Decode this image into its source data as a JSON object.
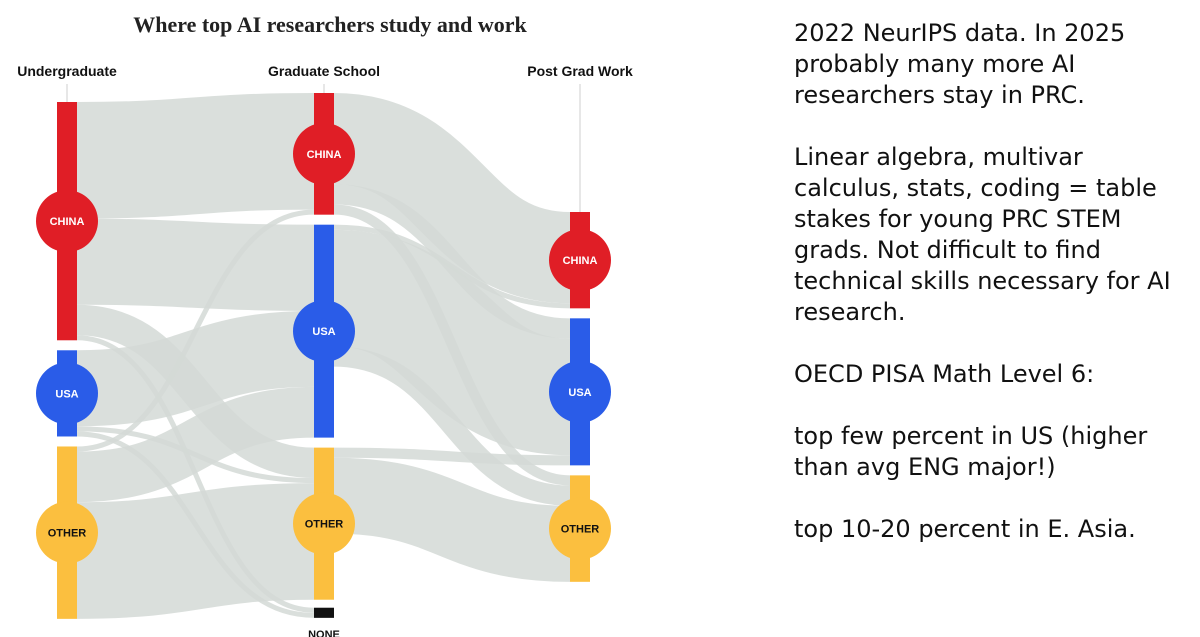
{
  "chart_data": {
    "type": "sankey",
    "title": "Where top AI researchers study and work",
    "stages": [
      "Undergraduate",
      "Graduate School",
      "Post Grad Work"
    ],
    "nodes": [
      {
        "id": "ug_china",
        "stage": 0,
        "label": "CHINA",
        "value": 47,
        "color": "#e01e26"
      },
      {
        "id": "ug_usa",
        "stage": 0,
        "label": "USA",
        "value": 17,
        "color": "#2a5ce8"
      },
      {
        "id": "ug_other",
        "stage": 0,
        "label": "OTHER",
        "value": 34,
        "color": "#fbbf3f"
      },
      {
        "id": "gs_china",
        "stage": 1,
        "label": "CHINA",
        "value": 24,
        "color": "#e01e26"
      },
      {
        "id": "gs_usa",
        "stage": 1,
        "label": "USA",
        "value": 42,
        "color": "#2a5ce8"
      },
      {
        "id": "gs_other",
        "stage": 1,
        "label": "OTHER",
        "value": 30,
        "color": "#fbbf3f"
      },
      {
        "id": "gs_none",
        "stage": 1,
        "label": "NONE",
        "value": 2,
        "color": "#111111"
      },
      {
        "id": "pg_china",
        "stage": 2,
        "label": "CHINA",
        "value": 19,
        "color": "#e01e26"
      },
      {
        "id": "pg_usa",
        "stage": 2,
        "label": "USA",
        "value": 29,
        "color": "#2a5ce8"
      },
      {
        "id": "pg_other",
        "stage": 2,
        "label": "OTHER",
        "value": 21,
        "color": "#fbbf3f"
      }
    ],
    "links": [
      {
        "source": "ug_china",
        "target": "gs_china",
        "value": 23
      },
      {
        "source": "ug_china",
        "target": "gs_usa",
        "value": 17
      },
      {
        "source": "ug_china",
        "target": "gs_other",
        "value": 6
      },
      {
        "source": "ug_china",
        "target": "gs_none",
        "value": 1
      },
      {
        "source": "ug_usa",
        "target": "gs_usa",
        "value": 15
      },
      {
        "source": "ug_usa",
        "target": "gs_other",
        "value": 1
      },
      {
        "source": "ug_usa",
        "target": "gs_none",
        "value": 1
      },
      {
        "source": "ug_other",
        "target": "gs_china",
        "value": 1
      },
      {
        "source": "ug_other",
        "target": "gs_usa",
        "value": 10
      },
      {
        "source": "ug_other",
        "target": "gs_other",
        "value": 23
      },
      {
        "source": "gs_china",
        "target": "pg_china",
        "value": 18
      },
      {
        "source": "gs_china",
        "target": "pg_usa",
        "value": 4
      },
      {
        "source": "gs_china",
        "target": "pg_other",
        "value": 2
      },
      {
        "source": "gs_usa",
        "target": "pg_china",
        "value": 1
      },
      {
        "source": "gs_usa",
        "target": "pg_usa",
        "value": 23
      },
      {
        "source": "gs_usa",
        "target": "pg_other",
        "value": 4
      },
      {
        "source": "gs_other",
        "target": "pg_usa",
        "value": 2
      },
      {
        "source": "gs_other",
        "target": "pg_other",
        "value": 15
      }
    ],
    "link_color": "#d3d9d6"
  },
  "commentary": [
    "2022 NeurIPS data. In 2025 probably many more AI researchers stay in PRC.",
    "Linear algebra, multivar calculus, stats, coding = table stakes for young PRC STEM grads. Not difficult to find technical skills necessary for AI research.",
    "OECD PISA Math Level 6:",
    "top few percent in US (higher than avg ENG major!)",
    "top 10-20 percent in E. Asia."
  ]
}
